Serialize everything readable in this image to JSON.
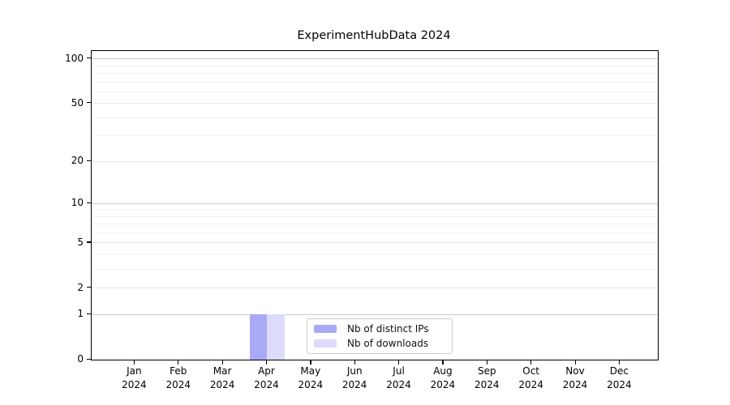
{
  "chart_data": {
    "type": "bar",
    "title": "ExperimentHubData 2024",
    "categories": [
      "Jan 2024",
      "Feb 2024",
      "Mar 2024",
      "Apr 2024",
      "May 2024",
      "Jun 2024",
      "Jul 2024",
      "Aug 2024",
      "Sep 2024",
      "Oct 2024",
      "Nov 2024",
      "Dec 2024"
    ],
    "series": [
      {
        "name": "Nb of distinct IPs",
        "color": "#a9aaf5",
        "values": [
          0,
          0,
          0,
          1,
          0,
          0,
          0,
          0,
          0,
          0,
          0,
          0
        ]
      },
      {
        "name": "Nb of downloads",
        "color": "#dcdcfa",
        "values": [
          0,
          0,
          0,
          1,
          0,
          0,
          0,
          0,
          0,
          0,
          0,
          0
        ]
      }
    ],
    "y_axis": {
      "scale": "log1p",
      "max": 113,
      "tick_labels": [
        0,
        1,
        2,
        5,
        10,
        20,
        50,
        100
      ],
      "decade_gridlines": [
        1,
        10,
        100
      ],
      "labeled_gridlines": [
        2,
        5,
        20,
        50
      ],
      "minor_gridlines": [
        3,
        4,
        6,
        7,
        8,
        9,
        30,
        40,
        60,
        70,
        80,
        90
      ]
    },
    "legend": {
      "position": "bottom-center",
      "entries": [
        "Nb of distinct IPs",
        "Nb of downloads"
      ]
    },
    "colors": {
      "grid_decade": "#cccccc",
      "grid_labeled": "#e6e6e6",
      "grid_minor": "#f2f2f2",
      "spine": "#000000",
      "text": "#000000"
    }
  }
}
